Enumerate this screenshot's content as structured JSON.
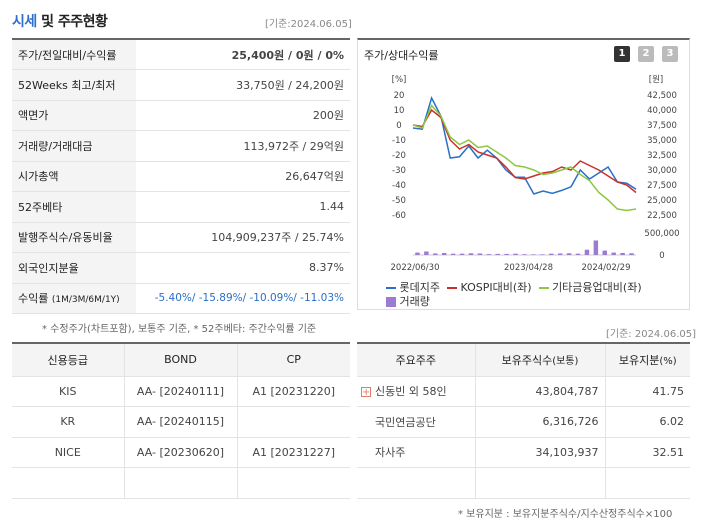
{
  "header": {
    "title_accent": "시세",
    "title_rest": " 및 주주현황",
    "base_date": "[기준:2024.06.05]"
  },
  "sise": [
    {
      "label": "주가/전일대비/수익률",
      "value": "25,400원 / 0원 / 0%"
    },
    {
      "label": "52Weeks 최고/최저",
      "value": "33,750원 / 24,200원"
    },
    {
      "label": "액면가",
      "value": "200원"
    },
    {
      "label": "거래량/거래대금",
      "value": "113,972주 / 29억원"
    },
    {
      "label": "시가총액",
      "value": "26,647억원"
    },
    {
      "label": "52주베타",
      "value": "1.44"
    },
    {
      "label": "발행주식수/유동비율",
      "value": "104,909,237주 / 25.74%"
    },
    {
      "label": "외국인지분율",
      "value": "8.37%"
    },
    {
      "label": "수익률",
      "label_small": "(1M/3M/6M/1Y)",
      "value": "-5.40%/ -15.89%/ -10.09%/ -11.03%"
    }
  ],
  "sise_note": "* 수정주가(차트포함), 보통주 기준, * 52주베타: 주간수익률 기준",
  "chart_panel": {
    "title": "주가/상대수익률",
    "tabs": [
      "1",
      "2",
      "3"
    ],
    "left_unit": "[%]",
    "right_unit": "[원]",
    "legend": [
      "롯데지주",
      "KOSPI대비(좌)",
      "기타금융업대비(좌)",
      "거래량"
    ]
  },
  "chart_data": {
    "type": "line",
    "x_tick_labels": [
      "2022/06/30",
      "2023/04/28",
      "2024/02/29"
    ],
    "y_left_ticks": [
      "20",
      "10",
      "0",
      "-10",
      "-20",
      "-30",
      "-40",
      "-50",
      "-60"
    ],
    "y_right_ticks": [
      "42,500",
      "40,000",
      "37,500",
      "35,000",
      "32,500",
      "30,000",
      "27,500",
      "25,000",
      "22,500"
    ],
    "vol_ticks": [
      "500,000",
      "0"
    ],
    "ylim_left": [
      -60,
      20
    ],
    "ylim_right": [
      22500,
      42500
    ],
    "series": [
      {
        "name": "롯데지주",
        "color": "#2a6fc9",
        "axis": "right",
        "values": [
          37000,
          36800,
          42000,
          39000,
          32000,
          32200,
          34000,
          32000,
          33300,
          32000,
          30000,
          28800,
          28800,
          26000,
          26500,
          26100,
          26600,
          27200,
          30000,
          28500,
          29500,
          30500,
          28000,
          27800,
          26800
        ]
      },
      {
        "name": "KOSPI대비(좌)",
        "color": "#c9302c",
        "axis": "left",
        "values": [
          0,
          -1,
          10,
          5,
          -10,
          -16,
          -13,
          -18,
          -20,
          -22,
          -28,
          -35,
          -36,
          -34,
          -32,
          -31,
          -28,
          -30,
          -24,
          -27,
          -30,
          -34,
          -38,
          -40,
          -45
        ]
      },
      {
        "name": "기타금융업대비(좌)",
        "color": "#8dc63f",
        "axis": "left",
        "values": [
          0,
          -2,
          13,
          6,
          -8,
          -13,
          -10,
          -15,
          -14,
          -18,
          -22,
          -27,
          -28,
          -30,
          -33,
          -32,
          -30,
          -28,
          -33,
          -37,
          -45,
          -50,
          -56,
          -57,
          -56
        ]
      }
    ],
    "volume": {
      "name": "거래량",
      "color": "#9b7cd1",
      "values": [
        55000,
        80000,
        35000,
        45000,
        30000,
        30000,
        40000,
        35000,
        20000,
        25000,
        25000,
        30000,
        18000,
        15000,
        15000,
        30000,
        35000,
        40000,
        30000,
        120000,
        330000,
        100000,
        55000,
        45000,
        40000
      ]
    }
  },
  "chart_base_date": "[기준: 2024.06.05]",
  "credit": {
    "headers": [
      "신용등급",
      "BOND",
      "CP"
    ],
    "rows": [
      [
        "KIS",
        "AA-  [20240111]",
        "A1  [20231220]"
      ],
      [
        "KR",
        "AA-  [20240115]",
        ""
      ],
      [
        "NICE",
        "AA-  [20230620]",
        "A1  [20231227]"
      ],
      [
        "",
        "",
        ""
      ]
    ]
  },
  "holders": {
    "headers": [
      "주요주주",
      "보유주식수",
      "(보통)",
      "보유지분",
      "(%)"
    ],
    "rows": [
      [
        "신동빈 외 58인",
        "43,804,787",
        "41.75"
      ],
      [
        "국민연금공단",
        "6,316,726",
        "6.02"
      ],
      [
        "자사주",
        "34,103,937",
        "32.51"
      ],
      [
        "",
        "",
        ""
      ]
    ],
    "note": "* 보유지분 : 보유지분주식수/지수산정주식수×100"
  }
}
